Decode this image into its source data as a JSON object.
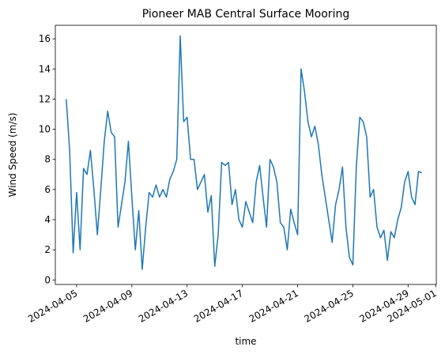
{
  "chart_data": {
    "type": "line",
    "title": "Pioneer MAB Central Surface Mooring",
    "xlabel": "time",
    "ylabel": "Wind Speed (m/s)",
    "x": [
      "2024-04-04T06:00",
      "2024-04-04T12:00",
      "2024-04-04T18:00",
      "2024-04-05T00:00",
      "2024-04-05T06:00",
      "2024-04-05T12:00",
      "2024-04-05T18:00",
      "2024-04-06T00:00",
      "2024-04-06T06:00",
      "2024-04-06T12:00",
      "2024-04-06T18:00",
      "2024-04-07T00:00",
      "2024-04-07T06:00",
      "2024-04-07T12:00",
      "2024-04-07T18:00",
      "2024-04-08T00:00",
      "2024-04-08T06:00",
      "2024-04-08T12:00",
      "2024-04-08T18:00",
      "2024-04-09T00:00",
      "2024-04-09T06:00",
      "2024-04-09T12:00",
      "2024-04-09T18:00",
      "2024-04-10T00:00",
      "2024-04-10T06:00",
      "2024-04-10T12:00",
      "2024-04-10T18:00",
      "2024-04-11T00:00",
      "2024-04-11T06:00",
      "2024-04-11T12:00",
      "2024-04-11T18:00",
      "2024-04-12T00:00",
      "2024-04-12T06:00",
      "2024-04-12T12:00",
      "2024-04-12T18:00",
      "2024-04-13T00:00",
      "2024-04-13T06:00",
      "2024-04-13T12:00",
      "2024-04-13T18:00",
      "2024-04-14T00:00",
      "2024-04-14T06:00",
      "2024-04-14T12:00",
      "2024-04-14T18:00",
      "2024-04-15T00:00",
      "2024-04-15T06:00",
      "2024-04-15T12:00",
      "2024-04-15T18:00",
      "2024-04-16T00:00",
      "2024-04-16T06:00",
      "2024-04-16T12:00",
      "2024-04-16T18:00",
      "2024-04-17T00:00",
      "2024-04-17T06:00",
      "2024-04-17T12:00",
      "2024-04-17T18:00",
      "2024-04-18T00:00",
      "2024-04-18T06:00",
      "2024-04-18T12:00",
      "2024-04-18T18:00",
      "2024-04-19T00:00",
      "2024-04-19T06:00",
      "2024-04-19T12:00",
      "2024-04-19T18:00",
      "2024-04-20T00:00",
      "2024-04-20T06:00",
      "2024-04-20T12:00",
      "2024-04-20T18:00",
      "2024-04-21T00:00",
      "2024-04-21T06:00",
      "2024-04-21T12:00",
      "2024-04-21T18:00",
      "2024-04-22T00:00",
      "2024-04-22T06:00",
      "2024-04-22T12:00",
      "2024-04-22T18:00",
      "2024-04-23T00:00",
      "2024-04-23T06:00",
      "2024-04-23T12:00",
      "2024-04-23T18:00",
      "2024-04-24T00:00",
      "2024-04-24T06:00",
      "2024-04-24T12:00",
      "2024-04-24T18:00",
      "2024-04-25T00:00",
      "2024-04-25T06:00",
      "2024-04-25T12:00",
      "2024-04-25T18:00",
      "2024-04-26T00:00",
      "2024-04-26T06:00",
      "2024-04-26T12:00",
      "2024-04-26T18:00",
      "2024-04-27T00:00",
      "2024-04-27T06:00",
      "2024-04-27T12:00",
      "2024-04-27T18:00",
      "2024-04-28T00:00",
      "2024-04-28T06:00",
      "2024-04-28T12:00",
      "2024-04-28T18:00",
      "2024-04-29T00:00",
      "2024-04-29T06:00",
      "2024-04-29T12:00",
      "2024-04-29T18:00",
      "2024-04-30T00:00"
    ],
    "series": [
      {
        "name": "Wind Speed",
        "color": "#1f77b4",
        "values": [
          12,
          8.5,
          1.8,
          5.8,
          2.0,
          7.4,
          7.0,
          8.6,
          6.0,
          3.0,
          6.0,
          9.2,
          11.2,
          9.8,
          9.5,
          3.5,
          5.0,
          6.5,
          9.2,
          5.5,
          2.0,
          4.6,
          0.7,
          3.5,
          5.8,
          5.5,
          6.3,
          5.5,
          6.0,
          5.5,
          6.7,
          7.2,
          8.0,
          16.2,
          10.5,
          10.8,
          8.0,
          8.0,
          6.0,
          6.5,
          7.0,
          4.5,
          5.6,
          0.9,
          3.0,
          7.8,
          7.6,
          7.8,
          5.0,
          6.0,
          4.0,
          3.5,
          5.2,
          4.5,
          3.8,
          6.5,
          7.6,
          5.5,
          3.5,
          8.0,
          7.5,
          6.5,
          3.8,
          3.5,
          2.0,
          4.7,
          3.8,
          3.0,
          14.0,
          12.5,
          10.5,
          9.5,
          10.2,
          9.0,
          7.0,
          5.5,
          4.0,
          2.5,
          5.0,
          6.0,
          7.5,
          3.5,
          1.5,
          1.0,
          7.5,
          10.8,
          10.5,
          9.5,
          5.5,
          6.0,
          3.5,
          2.8,
          3.3,
          1.3,
          3.2,
          2.8,
          4.0,
          4.8,
          6.5,
          7.2,
          5.5,
          5.0,
          7.2,
          7.1
        ]
      }
    ],
    "xlim": [
      "2024-04-03T11:00",
      "2024-05-01T01:00"
    ],
    "xticks": [
      "2024-04-05",
      "2024-04-09",
      "2024-04-13",
      "2024-04-17",
      "2024-04-21",
      "2024-04-25",
      "2024-04-29",
      "2024-05-01"
    ],
    "ylim": [
      -0.3,
      16.9
    ],
    "yticks": [
      0,
      2,
      4,
      6,
      8,
      10,
      12,
      14,
      16
    ]
  }
}
